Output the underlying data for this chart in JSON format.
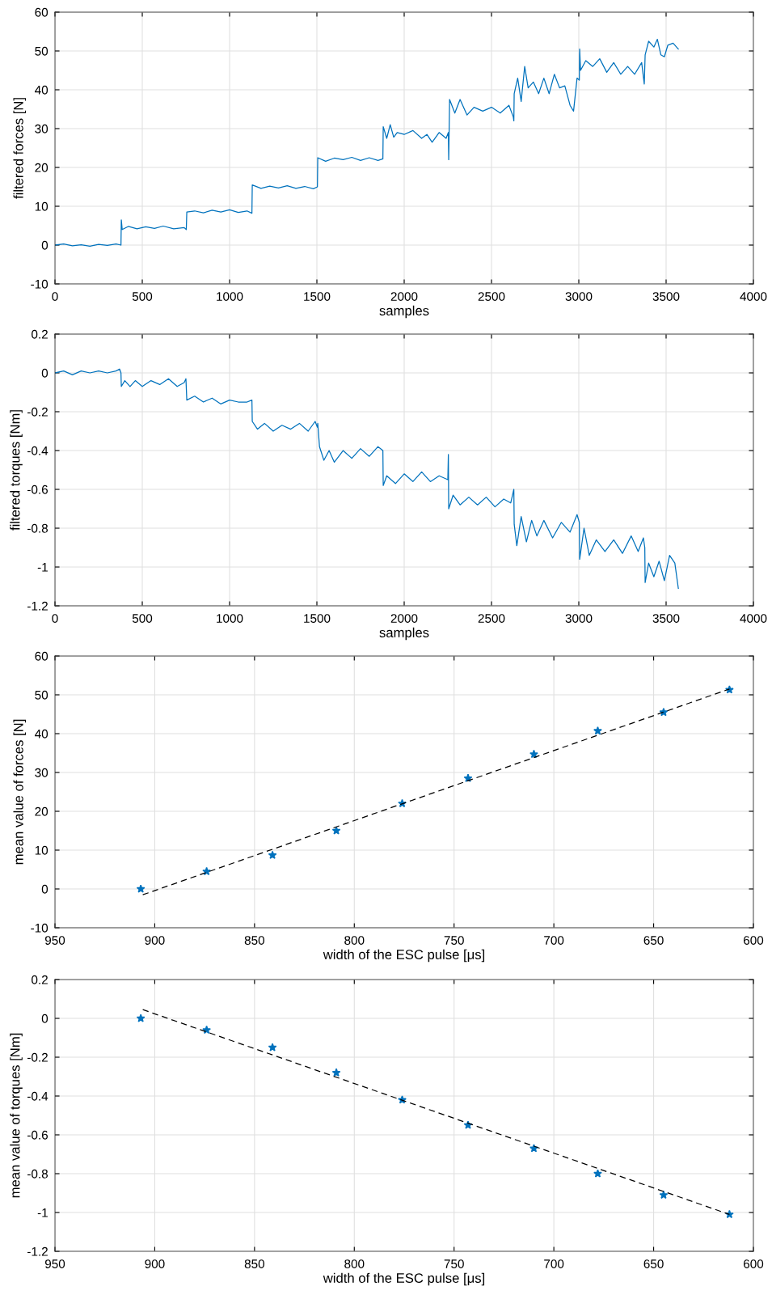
{
  "chart_data": [
    {
      "type": "line",
      "xlabel": "samples",
      "ylabel": "filtered forces [N]",
      "xlim": [
        0,
        4000
      ],
      "ylim": [
        -10,
        60
      ],
      "xticks": [
        0,
        500,
        1000,
        1500,
        2000,
        2500,
        3000,
        3500,
        4000
      ],
      "yticks": [
        -10,
        0,
        10,
        20,
        30,
        40,
        50,
        60
      ],
      "grid": true,
      "series": [
        {
          "color": "#0072bd",
          "x": [
            0,
            50,
            100,
            150,
            200,
            250,
            300,
            350,
            378,
            380,
            385,
            420,
            470,
            520,
            570,
            620,
            680,
            740,
            752,
            755,
            800,
            850,
            900,
            950,
            1000,
            1050,
            1100,
            1128,
            1130,
            1180,
            1230,
            1280,
            1330,
            1380,
            1430,
            1480,
            1503,
            1505,
            1550,
            1600,
            1650,
            1700,
            1750,
            1800,
            1850,
            1878,
            1880,
            1900,
            1920,
            1940,
            1960,
            2000,
            2050,
            2100,
            2130,
            2160,
            2200,
            2240,
            2253,
            2255,
            2260,
            2290,
            2320,
            2360,
            2400,
            2450,
            2500,
            2550,
            2600,
            2625,
            2628,
            2630,
            2650,
            2670,
            2690,
            2710,
            2740,
            2770,
            2800,
            2830,
            2860,
            2890,
            2920,
            2950,
            2970,
            2990,
            3003,
            3005,
            3010,
            3040,
            3080,
            3120,
            3160,
            3200,
            3240,
            3280,
            3320,
            3360,
            3375,
            3380,
            3400,
            3430,
            3450,
            3470,
            3490,
            3510,
            3540,
            3570
          ],
          "values": [
            0,
            0.3,
            -0.2,
            0.1,
            -0.3,
            0.2,
            -0.1,
            0.3,
            0,
            6.5,
            4,
            4.8,
            4.2,
            4.7,
            4.3,
            4.9,
            4.2,
            4.5,
            4,
            8.5,
            8.8,
            8.3,
            9,
            8.5,
            9.1,
            8.4,
            8.8,
            8.2,
            15.5,
            14.6,
            15.2,
            14.7,
            15.3,
            14.6,
            15.1,
            14.5,
            15,
            22.5,
            21.6,
            22.4,
            22,
            22.6,
            21.8,
            22.5,
            21.8,
            22.2,
            30.5,
            27.5,
            31,
            27.8,
            29,
            28.5,
            29.5,
            27.5,
            28.5,
            26.5,
            29,
            27.5,
            29,
            22,
            37.5,
            34,
            37.5,
            33.5,
            35.5,
            34.5,
            35.5,
            34,
            36,
            33,
            32,
            39,
            43,
            37,
            46,
            40.5,
            42,
            39,
            43,
            39,
            44,
            40.5,
            41,
            36,
            34.5,
            43,
            42.5,
            50.5,
            45,
            47.5,
            46,
            48,
            44.5,
            47,
            44,
            46,
            44,
            47,
            41.5,
            49,
            52.5,
            51,
            53,
            49,
            48.5,
            51.5,
            52,
            50.5
          ]
        }
      ]
    },
    {
      "type": "line",
      "xlabel": "samples",
      "ylabel": "filtered torques [Nm]",
      "xlim": [
        0,
        4000
      ],
      "ylim": [
        -1.2,
        0.2
      ],
      "xticks": [
        0,
        500,
        1000,
        1500,
        2000,
        2500,
        3000,
        3500,
        4000
      ],
      "yticks": [
        -1.2,
        -1,
        -0.8,
        -0.6,
        -0.4,
        -0.2,
        0,
        0.2
      ],
      "grid": true,
      "series": [
        {
          "color": "#0072bd",
          "x": [
            0,
            50,
            100,
            150,
            200,
            250,
            300,
            350,
            370,
            378,
            380,
            400,
            430,
            460,
            500,
            550,
            600,
            650,
            700,
            740,
            750,
            755,
            800,
            850,
            900,
            950,
            1000,
            1050,
            1100,
            1128,
            1130,
            1160,
            1200,
            1250,
            1300,
            1350,
            1400,
            1450,
            1490,
            1503,
            1505,
            1515,
            1540,
            1570,
            1600,
            1650,
            1700,
            1750,
            1800,
            1850,
            1878,
            1880,
            1900,
            1950,
            2000,
            2050,
            2100,
            2150,
            2200,
            2250,
            2253,
            2255,
            2280,
            2320,
            2370,
            2420,
            2470,
            2520,
            2570,
            2610,
            2628,
            2630,
            2645,
            2670,
            2700,
            2730,
            2760,
            2800,
            2850,
            2900,
            2950,
            2990,
            3003,
            3005,
            3030,
            3060,
            3100,
            3150,
            3200,
            3250,
            3300,
            3340,
            3370,
            3378,
            3380,
            3400,
            3430,
            3460,
            3490,
            3520,
            3550,
            3570
          ],
          "values": [
            0,
            0.01,
            -0.01,
            0.01,
            0,
            0.01,
            0,
            0.01,
            0.02,
            0,
            -0.07,
            -0.04,
            -0.07,
            -0.04,
            -0.07,
            -0.04,
            -0.06,
            -0.03,
            -0.07,
            -0.05,
            -0.03,
            -0.14,
            -0.12,
            -0.15,
            -0.13,
            -0.16,
            -0.14,
            -0.15,
            -0.15,
            -0.14,
            -0.25,
            -0.29,
            -0.26,
            -0.3,
            -0.27,
            -0.29,
            -0.26,
            -0.3,
            -0.25,
            -0.28,
            -0.26,
            -0.38,
            -0.45,
            -0.4,
            -0.46,
            -0.4,
            -0.44,
            -0.39,
            -0.43,
            -0.38,
            -0.4,
            -0.58,
            -0.53,
            -0.57,
            -0.52,
            -0.56,
            -0.51,
            -0.56,
            -0.53,
            -0.55,
            -0.42,
            -0.7,
            -0.63,
            -0.68,
            -0.64,
            -0.68,
            -0.64,
            -0.69,
            -0.65,
            -0.67,
            -0.6,
            -0.78,
            -0.89,
            -0.74,
            -0.87,
            -0.76,
            -0.84,
            -0.76,
            -0.85,
            -0.77,
            -0.82,
            -0.73,
            -0.77,
            -0.96,
            -0.8,
            -0.94,
            -0.86,
            -0.92,
            -0.86,
            -0.93,
            -0.84,
            -0.92,
            -0.85,
            -0.9,
            -1.08,
            -0.98,
            -1.05,
            -0.97,
            -1.07,
            -0.94,
            -0.98,
            -1.11
          ]
        }
      ]
    },
    {
      "type": "scatter",
      "xlabel": "width of the ESC pulse [μs]",
      "ylabel": "mean value of forces [N]",
      "xlim": [
        950,
        600
      ],
      "ylim": [
        -10,
        60
      ],
      "xticks": [
        950,
        900,
        850,
        800,
        750,
        700,
        650,
        600
      ],
      "yticks": [
        -10,
        0,
        10,
        20,
        30,
        40,
        50,
        60
      ],
      "grid": true,
      "series": [
        {
          "type": "scatter",
          "marker": "star",
          "color": "#0072bd",
          "x": [
            907,
            874,
            841,
            809,
            776,
            743,
            710,
            678,
            645,
            612
          ],
          "values": [
            0,
            4.5,
            8.7,
            15,
            22,
            28.5,
            34.7,
            40.7,
            45.5,
            51.3
          ]
        },
        {
          "type": "line",
          "line_style": "dashed",
          "color": "#000000",
          "x": [
            906,
            612
          ],
          "values": [
            -1.5,
            51.5
          ]
        }
      ]
    },
    {
      "type": "scatter",
      "xlabel": "width of the ESC pulse [μs]",
      "ylabel": "mean value of torques [Nm]",
      "xlim": [
        950,
        600
      ],
      "ylim": [
        -1.2,
        0.2
      ],
      "xticks": [
        950,
        900,
        850,
        800,
        750,
        700,
        650,
        600
      ],
      "yticks": [
        -1.2,
        -1,
        -0.8,
        -0.6,
        -0.4,
        -0.2,
        0,
        0.2
      ],
      "grid": true,
      "series": [
        {
          "type": "scatter",
          "marker": "star",
          "color": "#0072bd",
          "x": [
            907,
            874,
            841,
            809,
            776,
            743,
            710,
            678,
            645,
            612
          ],
          "values": [
            0,
            -0.06,
            -0.15,
            -0.28,
            -0.42,
            -0.55,
            -0.67,
            -0.8,
            -0.91,
            -1.01
          ]
        },
        {
          "type": "line",
          "line_style": "dashed",
          "color": "#000000",
          "x": [
            906,
            612
          ],
          "values": [
            0.045,
            -1.01
          ]
        }
      ]
    }
  ]
}
